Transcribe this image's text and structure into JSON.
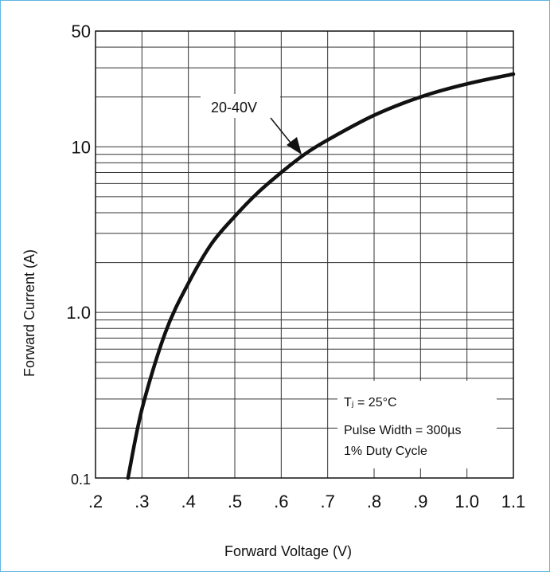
{
  "chart_data": {
    "type": "line",
    "xlabel": "Forward Voltage (V)",
    "ylabel": "Forward Current (A)",
    "xlim": [
      0.2,
      1.1
    ],
    "ylim": [
      0.1,
      50
    ],
    "y_scale": "log",
    "grid": true,
    "x_tick_labels": [
      ".2",
      ".3",
      ".4",
      ".5",
      ".6",
      ".7",
      ".8",
      ".9",
      "1.0",
      "1.1"
    ],
    "y_tick_labels": [
      {
        "value": 50,
        "label": "50"
      },
      {
        "value": 10,
        "label": "10"
      },
      {
        "value": 1,
        "label": "1.0"
      },
      {
        "value": 0.1,
        "label": "0.1"
      }
    ],
    "series": [
      {
        "name": "20-40V",
        "x": [
          0.27,
          0.3,
          0.35,
          0.4,
          0.45,
          0.5,
          0.55,
          0.6,
          0.65,
          0.7,
          0.8,
          0.9,
          1.0,
          1.1
        ],
        "y": [
          0.1,
          0.26,
          0.75,
          1.5,
          2.6,
          3.8,
          5.3,
          7.0,
          9.0,
          11.0,
          15.5,
          20.0,
          24.0,
          27.5
        ]
      }
    ],
    "annotations": {
      "series_label": "20-40V",
      "conditions": [
        "Tⱼ = 25°C",
        "Pulse Width = 300µs",
        "1% Duty Cycle"
      ]
    },
    "colors": {
      "line": "#111111",
      "grid": "#333333",
      "frame": "#5fb4e3"
    }
  }
}
